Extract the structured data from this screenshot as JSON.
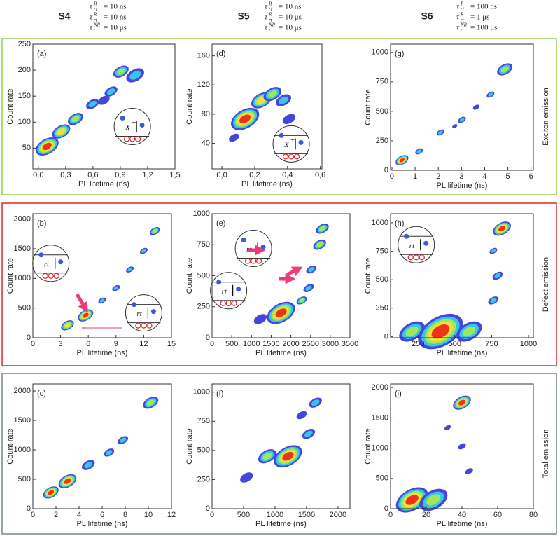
{
  "columns": [
    {
      "label": "S4",
      "params": [
        {
          "symbol": "τ",
          "sup": "R",
          "sub": "t1",
          "value": "= 10 ns"
        },
        {
          "symbol": "τ",
          "sup": "R",
          "sub": "rt",
          "value": "= 10 ns"
        },
        {
          "symbol": "τ",
          "sup": "NR",
          "sub": "t",
          "value": "= 10 μs"
        }
      ]
    },
    {
      "label": "S5",
      "params": [
        {
          "symbol": "τ",
          "sup": "R",
          "sub": "t1",
          "value": "= 10 ns"
        },
        {
          "symbol": "τ",
          "sup": "R",
          "sub": "rt",
          "value": "= 10 μs"
        },
        {
          "symbol": "τ",
          "sup": "NR",
          "sub": "t",
          "value": "= 10 μs"
        }
      ]
    },
    {
      "label": "S6",
      "params": [
        {
          "symbol": "τ",
          "sup": "R",
          "sub": "t1",
          "value": "= 100 ns"
        },
        {
          "symbol": "τ",
          "sup": "R",
          "sub": "rt",
          "value": "= 1 μs"
        },
        {
          "symbol": "τ",
          "sup": "NR",
          "sub": "t",
          "value": "= 100 μs"
        }
      ]
    }
  ],
  "rows": [
    {
      "label": "Exciton emission",
      "color": "#8ed14d"
    },
    {
      "label": "Defect emission",
      "color": "#e0262b"
    },
    {
      "label": "Total emission",
      "color": "#708a80"
    }
  ],
  "panels": [
    {
      "label": "(a)",
      "xlabel": "PL lifetime (ns)",
      "ylabel": "Count rate",
      "xlim": [
        -0.06,
        1.5
      ],
      "ylim": [
        10,
        250
      ],
      "xticks": [
        {
          "value": 0,
          "label": "0,0"
        },
        {
          "value": 0.3,
          "label": "0,3"
        },
        {
          "value": 0.6,
          "label": "0,6"
        },
        {
          "value": 0.9,
          "label": "0,9"
        },
        {
          "value": 1.2,
          "label": "1,2"
        },
        {
          "value": 1.5,
          "label": "1,5"
        }
      ],
      "yticks": [
        50,
        100,
        150,
        200,
        250
      ],
      "insets": [
        {
          "text": "X",
          "sup": "+"
        }
      ]
    },
    {
      "label": "(d)",
      "xlabel": "PL lifetime (ns)",
      "ylabel": "Count rate",
      "xlim": [
        -0.06,
        0.61
      ],
      "ylim": [
        5,
        176
      ],
      "xticks": [
        {
          "value": 0,
          "label": "0,0"
        },
        {
          "value": 0.2,
          "label": "0,2"
        },
        {
          "value": 0.4,
          "label": "0,4"
        },
        {
          "value": 0.6,
          "label": "0,6"
        }
      ],
      "yticks": [
        40,
        80,
        120,
        160
      ],
      "insets": [
        {
          "text": "X",
          "sup": "+"
        }
      ]
    },
    {
      "label": "(g)",
      "xlabel": "PL lifetime (ns)",
      "ylabel": "Count rate",
      "xlim": [
        -0.06,
        6.1
      ],
      "ylim": [
        0,
        1070
      ],
      "xticks": [
        0,
        1,
        2,
        3,
        4,
        5,
        6
      ],
      "yticks": [
        0,
        250,
        500,
        750,
        1000
      ],
      "insets": []
    },
    {
      "label": "(b)",
      "xlabel": "PL lifetime (ns)",
      "ylabel": "Count rate",
      "xlim": [
        0,
        15
      ],
      "ylim": [
        0,
        2090
      ],
      "xticks": [
        0,
        3,
        6,
        9,
        12,
        15
      ],
      "yticks": [
        0,
        500,
        1000,
        1500,
        2000
      ],
      "insets": [
        {
          "text": "rt",
          "sup": ""
        },
        {
          "text": "rt",
          "sup": ""
        }
      ]
    },
    {
      "label": "(e)",
      "xlabel": "PL lifetime (ns)",
      "ylabel": "Count rate",
      "xlim": [
        0,
        3500
      ],
      "ylim": [
        0,
        1000
      ],
      "xticks": [
        0,
        500,
        1000,
        1500,
        2000,
        2500,
        3000,
        3500
      ],
      "yticks": [
        0,
        250,
        500,
        750,
        1000
      ],
      "insets": [
        {
          "text": "rt",
          "sup": ""
        },
        {
          "text": "rt",
          "sup": ""
        }
      ]
    },
    {
      "label": "(h)",
      "xlabel": "PL lifetime (ns)",
      "ylabel": "Count rate",
      "xlim": [
        64,
        1033
      ],
      "ylim": [
        -10,
        1080
      ],
      "xticks": [
        250,
        500,
        750,
        1000
      ],
      "yticks": [
        0,
        250,
        500,
        750,
        1000
      ],
      "insets": [
        {
          "text": "rt",
          "sup": ""
        }
      ]
    },
    {
      "label": "(c)",
      "xlabel": "PL lifetime (ns)",
      "ylabel": "Count rate",
      "xlim": [
        0,
        12
      ],
      "ylim": [
        0,
        2120
      ],
      "xticks": [
        0,
        2,
        4,
        6,
        8,
        10,
        12
      ],
      "yticks": [
        0,
        500,
        1000,
        1500,
        2000
      ],
      "insets": []
    },
    {
      "label": "(f)",
      "xlabel": "PL lifetime (ns)",
      "ylabel": "Count rate",
      "xlim": [
        0,
        2190
      ],
      "ylim": [
        0,
        1070
      ],
      "xticks": [
        0,
        500,
        1000,
        1500,
        2000
      ],
      "yticks": [
        0,
        250,
        500,
        750,
        1000
      ],
      "insets": []
    },
    {
      "label": "(i)",
      "xlabel": "PL lifetime (ns)",
      "ylabel": "Count rate",
      "xlim": [
        0,
        80
      ],
      "ylim": [
        0,
        2060
      ],
      "xticks": [
        0,
        20,
        40,
        60,
        80
      ],
      "yticks": [
        0,
        500,
        1000,
        1500,
        2000
      ],
      "insets": []
    }
  ]
}
